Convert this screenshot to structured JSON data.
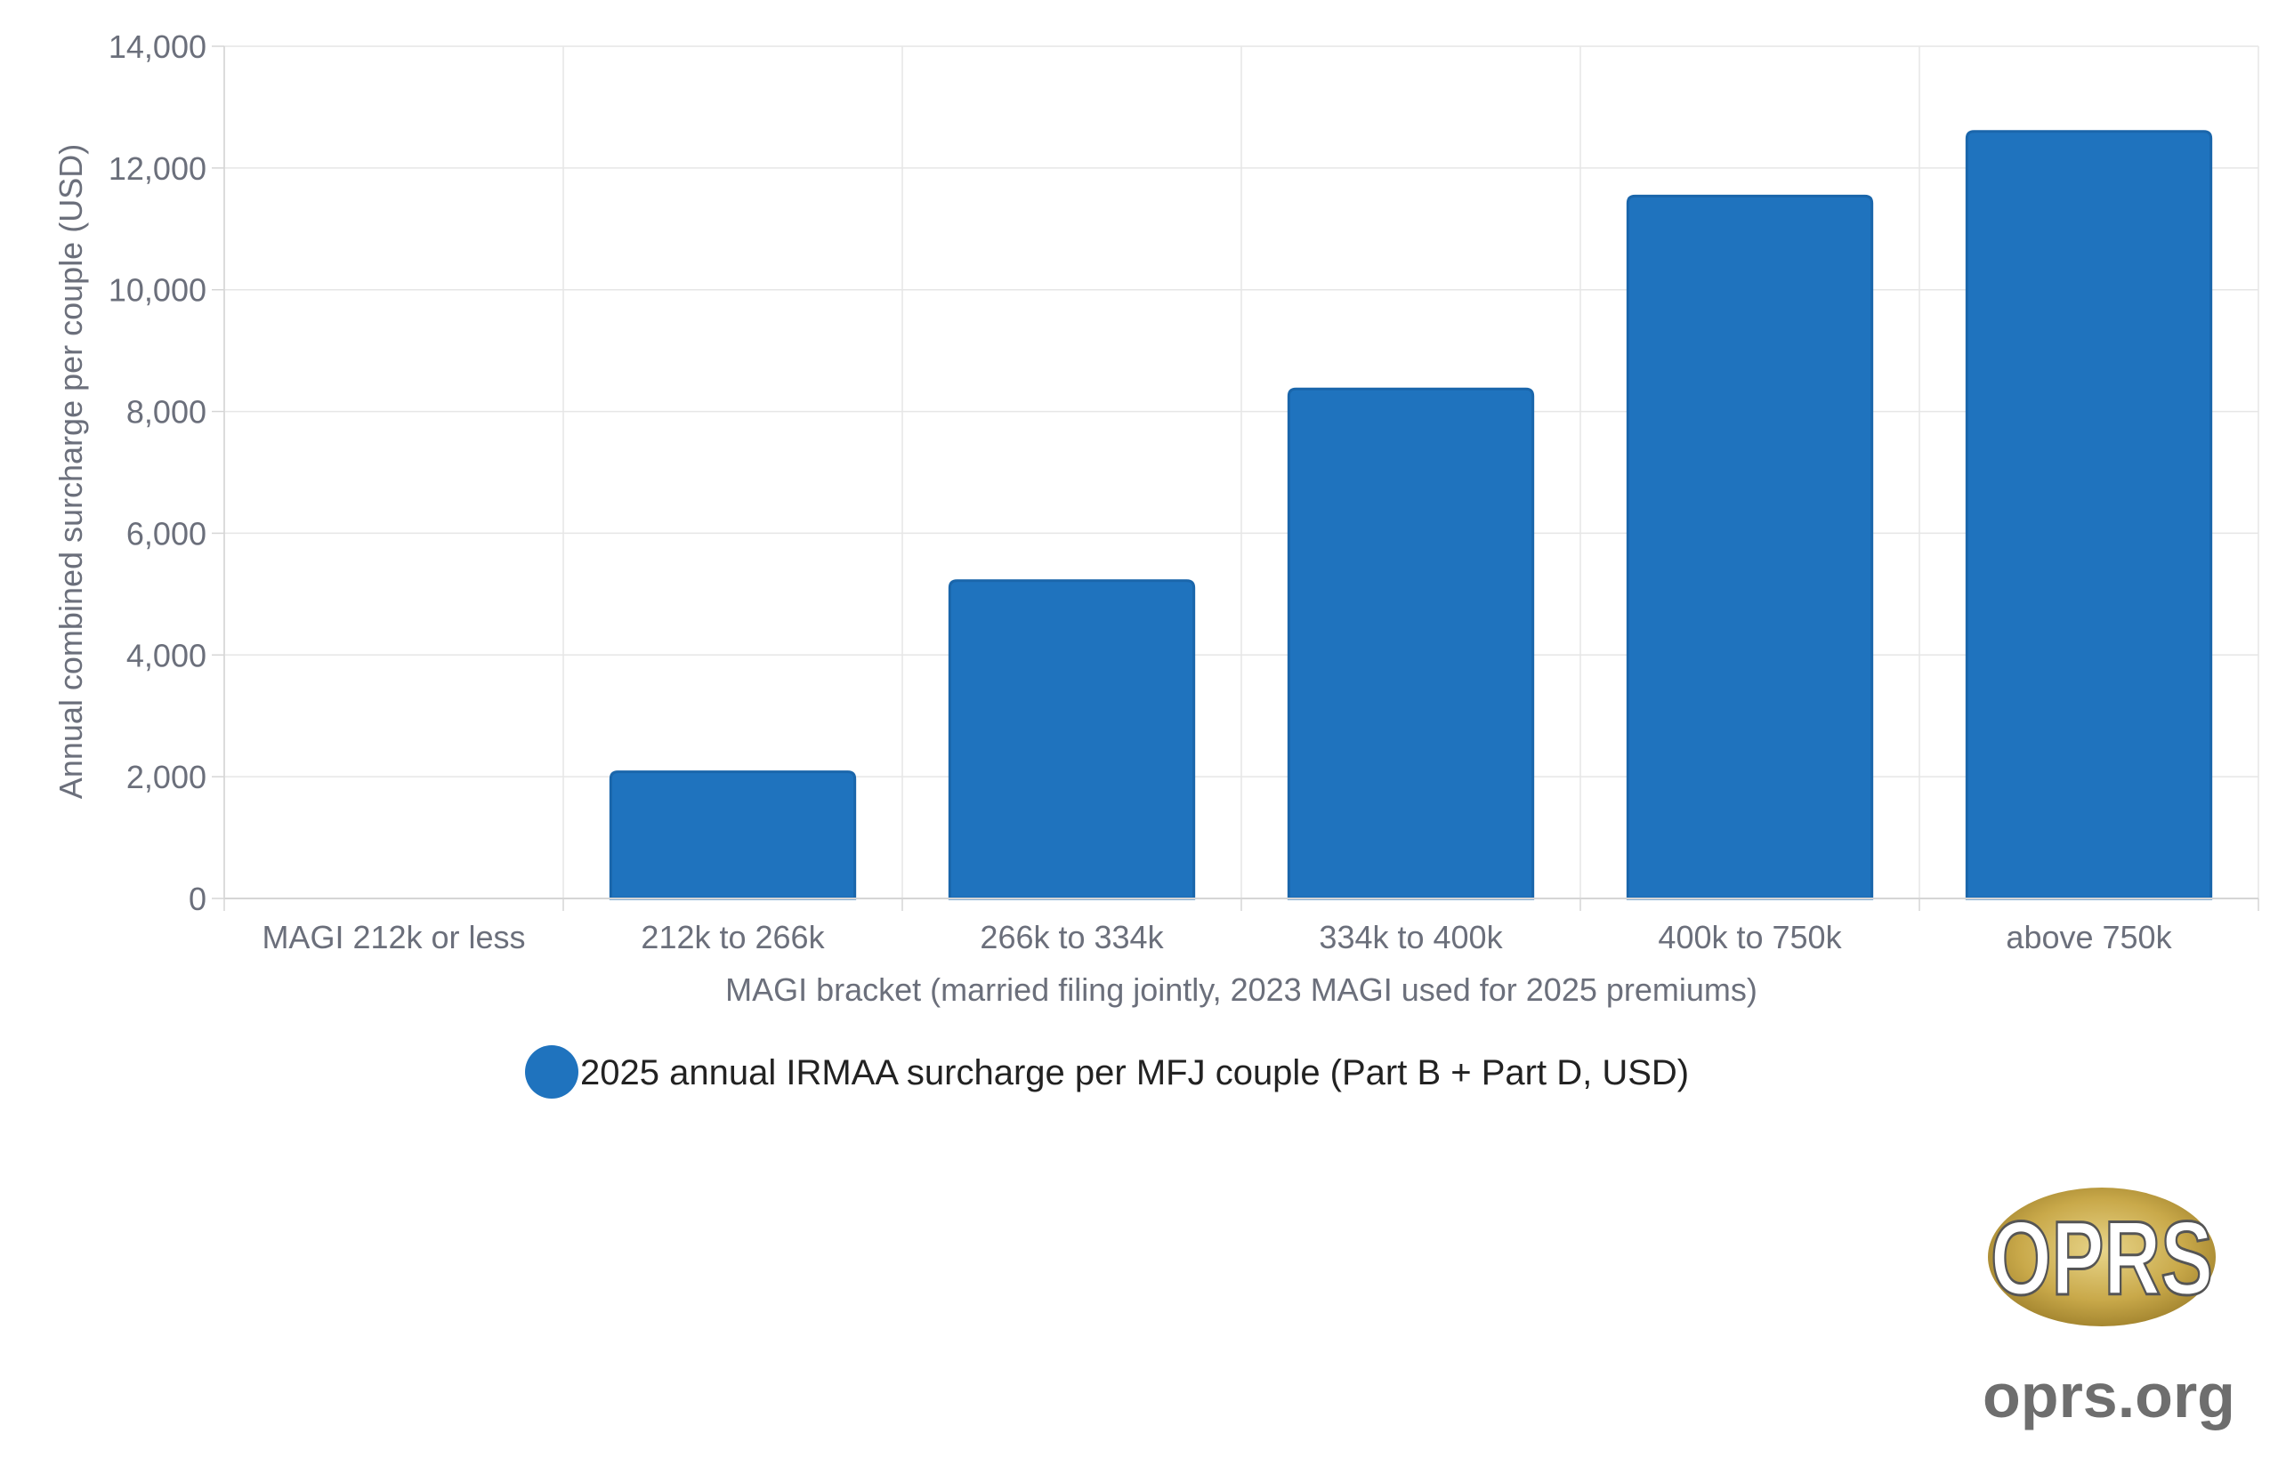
{
  "chart_data": {
    "type": "bar",
    "categories": [
      "MAGI 212k or less",
      "212k to 266k",
      "266k to 334k",
      "334k to 400k",
      "400k to 750k",
      "above 750k"
    ],
    "series": [
      {
        "name": "2025 annual IRMAA surcharge per MFJ couple (Part B + Part D, USD)",
        "values": [
          0,
          2080,
          5220,
          8370,
          11540,
          12600
        ],
        "color": "#1f73be"
      }
    ],
    "title": "",
    "xlabel": "MAGI bracket (married filing jointly, 2023 MAGI used for 2025 premiums)",
    "ylabel": "Annual combined surcharge per couple (USD)",
    "ylim": [
      0,
      14000
    ],
    "yticks": [
      0,
      2000,
      4000,
      6000,
      8000,
      10000,
      12000,
      14000
    ],
    "ytick_labels": [
      "0",
      "2,000",
      "4,000",
      "6,000",
      "8,000",
      "10,000",
      "12,000",
      "14,000"
    ],
    "grid": true,
    "legend_position": "bottom"
  },
  "logo": {
    "mark": "OPRS",
    "url_text": "oprs.org"
  }
}
